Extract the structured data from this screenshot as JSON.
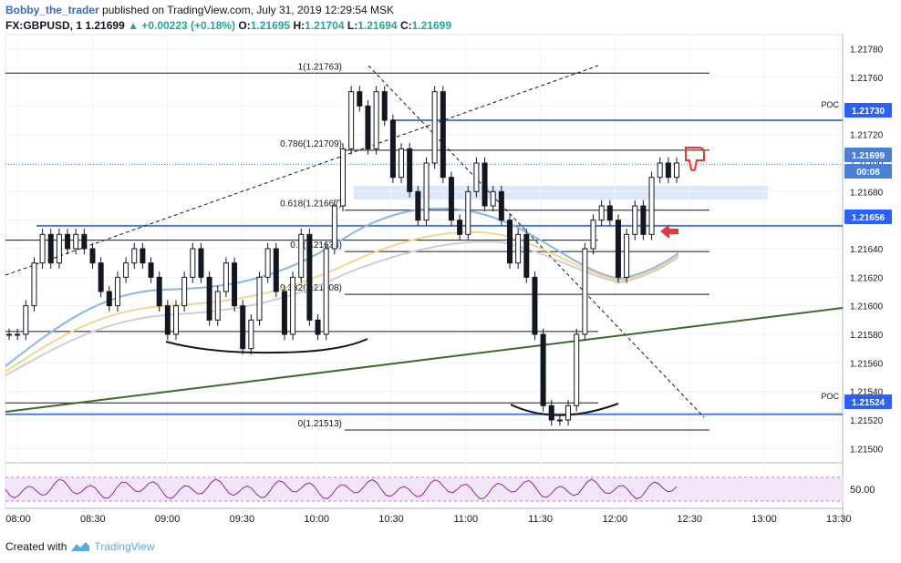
{
  "header": {
    "author": "Bobby_the_trader",
    "published_text": "published on TradingView.com, July 31, 2019 12:29:54 MSK",
    "symbol": "FX:GBPUSD, 1",
    "last": "1.21699",
    "change": "▲ +0.00223 (+0.18%)",
    "ohlc": {
      "o_label": "O:",
      "o": "1.21695",
      "h_label": "H:",
      "h": "1.21704",
      "l_label": "L:",
      "l": "1.21694",
      "c_label": "C:",
      "c": "1.21699"
    }
  },
  "footer": {
    "created_with": "Created with",
    "brand": "TradingView"
  },
  "colors": {
    "up": "#26a69a",
    "candle": "#131722",
    "level_blue": "#4a7fd6",
    "trend_green": "#3e6b28",
    "ma_blue": "#8ab6e8",
    "ma_yellow": "#f5d78a",
    "ma_gray": "#cfcfcf",
    "rsi": "#8e24aa",
    "zone": "#dde9fa",
    "rsi_zone": "#f3e6f8"
  },
  "chart_data": {
    "type": "candlestick",
    "symbol": "GBPUSD",
    "timeframe": "1",
    "ylim": [
      1.2149,
      1.2179
    ],
    "y_ticks": [
      "1.21780",
      "1.21760",
      "1.21740",
      "1.21720",
      "1.21700",
      "1.21680",
      "1.21660",
      "1.21640",
      "1.21620",
      "1.21600",
      "1.21580",
      "1.21560",
      "1.21540",
      "1.21520",
      "1.21500"
    ],
    "x_ticks": [
      "08:00",
      "08:30",
      "09:00",
      "09:30",
      "10:00",
      "10:30",
      "11:00",
      "11:30",
      "12:00",
      "12:30",
      "13:00",
      "13:30"
    ],
    "price_labels": [
      {
        "text": "1.21730",
        "tag": "POC",
        "kind": "level"
      },
      {
        "text": "1.21699",
        "tag": "",
        "kind": "last"
      },
      {
        "text": "00:08",
        "tag": "",
        "kind": "timer"
      },
      {
        "text": "1.21656",
        "tag": "",
        "kind": "level"
      },
      {
        "text": "1.21524",
        "tag": "POC",
        "kind": "level"
      }
    ],
    "fib_levels": [
      {
        "label": "1(1.21763)",
        "value": 1.21763
      },
      {
        "label": "0.786(1.21709)",
        "value": 1.21709
      },
      {
        "label": "0.618(1.21667)",
        "value": 1.21667
      },
      {
        "label": "0.5(1.21638)",
        "value": 1.21638
      },
      {
        "label": "0.382(1.21608)",
        "value": 1.21608
      },
      {
        "label": "0(1.21513)",
        "value": 1.21513
      }
    ],
    "horizontal_lines": [
      1.21656,
      1.2173,
      1.21524,
      1.21646,
      1.21582,
      1.21532
    ],
    "close_series": [
      1.2158,
      1.2158,
      1.216,
      1.2163,
      1.2165,
      1.2163,
      1.2165,
      1.2164,
      1.2165,
      1.2164,
      1.2163,
      1.2161,
      1.216,
      1.2162,
      1.2163,
      1.2164,
      1.2163,
      1.2162,
      1.216,
      1.2158,
      1.216,
      1.2162,
      1.2164,
      1.2162,
      1.2159,
      1.2161,
      1.2163,
      1.216,
      1.2157,
      1.2159,
      1.2162,
      1.2164,
      1.2161,
      1.2158,
      1.2162,
      1.2165,
      1.2159,
      1.2158,
      1.2164,
      1.2167,
      1.2171,
      1.2175,
      1.2174,
      1.2171,
      1.2175,
      1.2173,
      1.2169,
      1.2171,
      1.2168,
      1.2166,
      1.217,
      1.2175,
      1.2169,
      1.2166,
      1.2165,
      1.2168,
      1.217,
      1.2167,
      1.2168,
      1.2166,
      1.2163,
      1.2165,
      1.2162,
      1.2158,
      1.2153,
      1.2152,
      1.2152,
      1.2153,
      1.2158,
      1.2164,
      1.2166,
      1.2167,
      1.2166,
      1.2162,
      1.2165,
      1.2167,
      1.2165,
      1.2169,
      1.217,
      1.2169,
      1.217
    ],
    "rsi": {
      "label": "50.00",
      "level": 50
    }
  }
}
